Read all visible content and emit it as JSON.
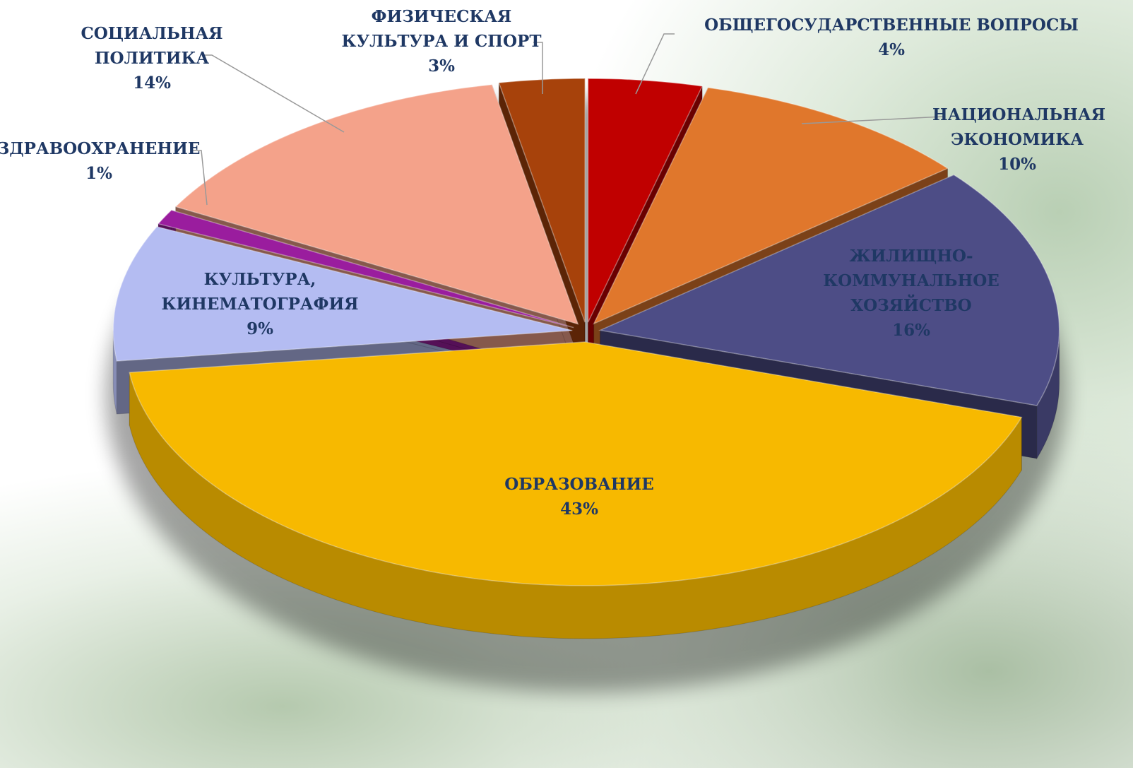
{
  "chart_data": {
    "type": "pie",
    "categories": [
      "ОБЩЕГОСУДАРСТВЕННЫЕ ВОПРОСЫ",
      "НАЦИОНАЛЬНАЯ ЭКОНОМИКА",
      "ЖИЛИЩНО-КОММУНАЛЬНОЕ ХОЗЯЙСТВО",
      "ОБРАЗОВАНИЕ",
      "КУЛЬТУРА, КИНЕМАТОГРАФИЯ",
      "ЗДРАВООХРАНЕНИЕ",
      "СОЦИАЛЬНАЯ ПОЛИТИКА",
      "ФИЗИЧЕСКАЯ КУЛЬТУРА И СПОРТ"
    ],
    "values": [
      4,
      10,
      16,
      43,
      9,
      1,
      14,
      3
    ],
    "value_labels": [
      "4%",
      "10%",
      "16%",
      "43%",
      "9%",
      "1%",
      "14%",
      "3%"
    ],
    "colors": [
      "#c00000",
      "#e0772c",
      "#4d4d86",
      "#f7b900",
      "#b4bcf2",
      "#9a1d9e",
      "#f4a28a",
      "#a7420b"
    ]
  }
}
